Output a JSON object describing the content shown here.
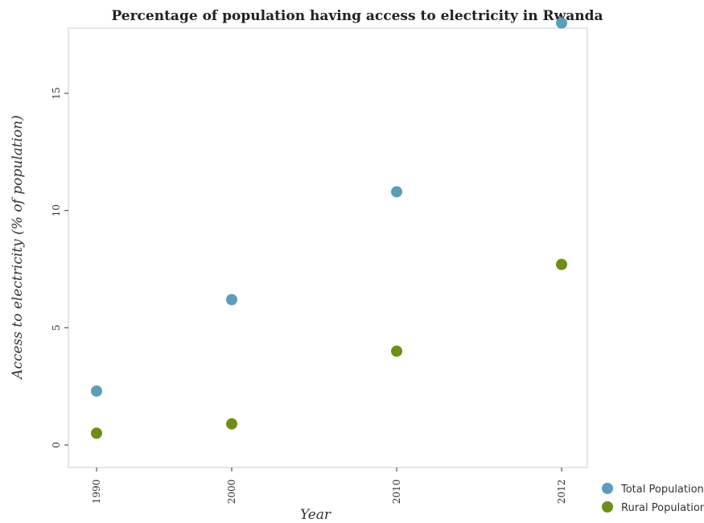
{
  "chart_data": {
    "type": "scatter",
    "title": "Percentage of population having access to electricity in Rwanda",
    "xlabel": "Year",
    "ylabel": "Access to electricity (% of population)",
    "categories": [
      "1990",
      "2000",
      "2010",
      "2012"
    ],
    "ylim": [
      0,
      18.6
    ],
    "yticks": [
      "0",
      "5",
      "10",
      "15"
    ],
    "ytick_values": [
      0,
      5,
      10,
      15
    ],
    "grid": false,
    "legend_position": "bottom-right",
    "series": [
      {
        "name": "Total Population",
        "color": "#5b9eb9",
        "values": [
          2.3,
          6.2,
          10.8,
          18.0
        ]
      },
      {
        "name": "Rural Population",
        "color": "#6e8e14",
        "values": [
          0.5,
          0.9,
          4.0,
          7.7
        ]
      }
    ]
  }
}
